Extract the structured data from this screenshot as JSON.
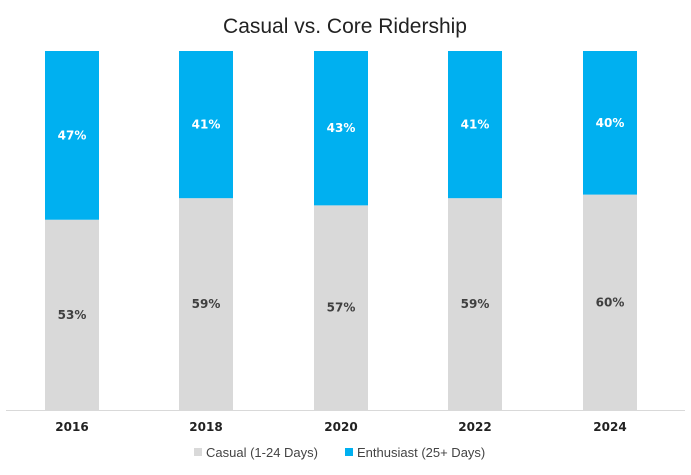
{
  "chart_data": {
    "type": "bar",
    "stacked": true,
    "title": "Casual vs. Core Ridership",
    "categories": [
      "2016",
      "2018",
      "2020",
      "2022",
      "2024"
    ],
    "series": [
      {
        "name": "Casual (1-24 Days)",
        "color": "#d9d9d9",
        "label_color": "#404040",
        "values": [
          53,
          59,
          57,
          59,
          60
        ],
        "labels": [
          "53%",
          "59%",
          "57%",
          "59%",
          "60%"
        ]
      },
      {
        "name": "Enthusiast (25+ Days)",
        "color": "#00b0f0",
        "label_color": "#ffffff",
        "values": [
          47,
          41,
          43,
          41,
          40
        ],
        "labels": [
          "47%",
          "41%",
          "43%",
          "41%",
          "40%"
        ]
      }
    ],
    "ylim": [
      0,
      100
    ],
    "xlabel": "",
    "ylabel": "",
    "grid": false,
    "legend_position": "bottom"
  }
}
